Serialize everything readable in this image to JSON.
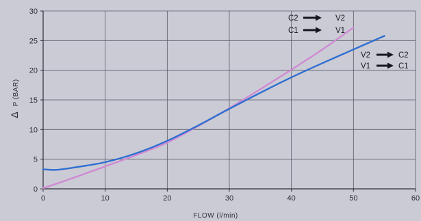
{
  "chart_data": {
    "type": "line",
    "xlabel": "FLOW (l/min)",
    "ylabel_symbol": "Δ",
    "ylabel": "P (BAR)",
    "xlim": [
      0,
      60
    ],
    "ylim": [
      0,
      30
    ],
    "xticks": [
      "0",
      "10",
      "20",
      "30",
      "40",
      "50",
      "60"
    ],
    "yticks": [
      "0",
      "5",
      "10",
      "15",
      "20",
      "25",
      "30"
    ],
    "grid": true,
    "series": [
      {
        "color": "#cf8ad2",
        "x": [
          0,
          5,
          10,
          15,
          20,
          25,
          30,
          35,
          40,
          45,
          50
        ],
        "y": [
          0.1,
          1.9,
          3.8,
          5.7,
          7.8,
          10.6,
          13.6,
          16.8,
          20.1,
          23.5,
          27.2
        ]
      },
      {
        "color": "#2f6fd0",
        "x": [
          0,
          2,
          5,
          10,
          15,
          20,
          25,
          30,
          35,
          40,
          45,
          50,
          55
        ],
        "y": [
          3.3,
          3.2,
          3.6,
          4.5,
          6.0,
          8.1,
          10.7,
          13.5,
          16.2,
          18.8,
          21.2,
          23.5,
          25.8
        ]
      }
    ],
    "annotations": {
      "pink": [
        {
          "from": "C2",
          "to": "V2"
        },
        {
          "from": "C1",
          "to": "V1"
        }
      ],
      "blue": [
        {
          "from": "V2",
          "to": "C2"
        },
        {
          "from": "V1",
          "to": "C1"
        }
      ]
    },
    "colors": {
      "background": "#cbcbd5",
      "grid": "#5a5a66",
      "axis": "#2c2c36"
    }
  }
}
